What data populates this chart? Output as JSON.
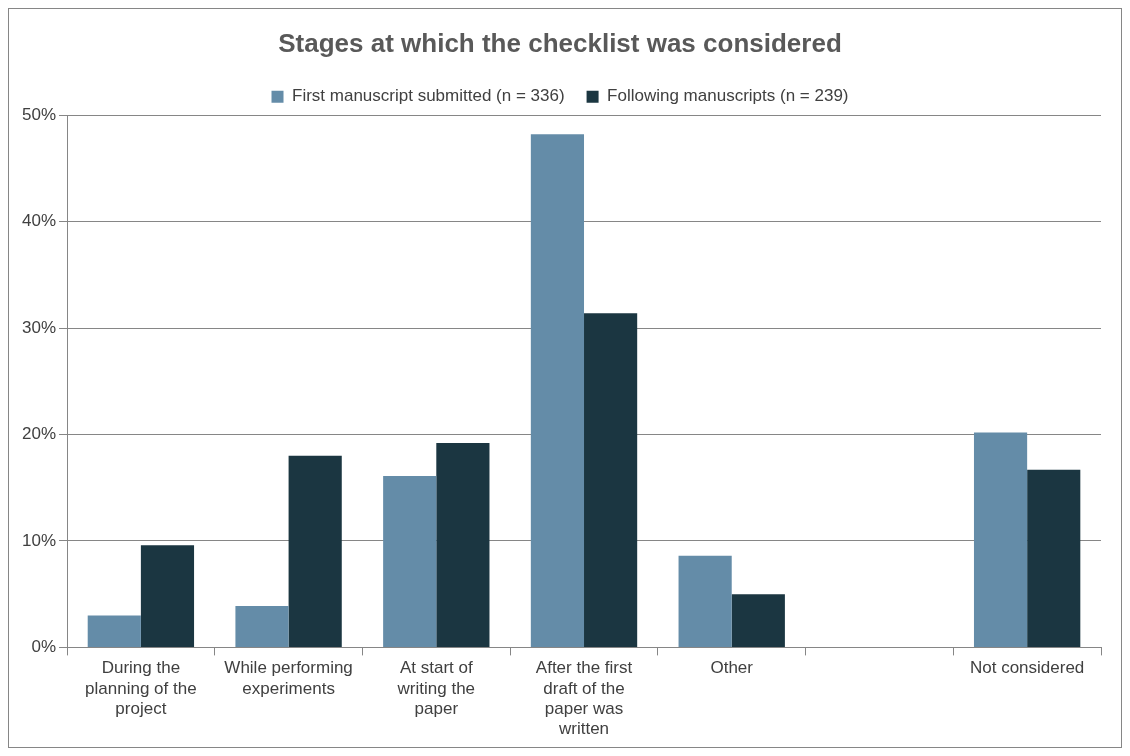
{
  "chart_data": {
    "type": "bar",
    "title": "Stages at which the checklist was considered",
    "categories": [
      "During the planning of the project",
      "While performing experiments",
      "At start of writing the paper",
      "After the first draft of the paper was written",
      "Other",
      null,
      "Not considered"
    ],
    "series": [
      {
        "name": "First manuscript submitted (n = 336)",
        "color": "#648ca8",
        "values": [
          3.0,
          3.9,
          16.1,
          48.2,
          8.6,
          null,
          20.2
        ]
      },
      {
        "name": "Following manuscripts (n = 239)",
        "color": "#1b3641",
        "values": [
          9.6,
          18.0,
          19.2,
          31.4,
          5.0,
          null,
          16.7
        ]
      }
    ],
    "ylim": [
      0,
      50
    ],
    "yticks": [
      {
        "value": 0,
        "label": "0%"
      },
      {
        "value": 10,
        "label": "10%"
      },
      {
        "value": 20,
        "label": "20%"
      },
      {
        "value": 30,
        "label": "30%"
      },
      {
        "value": 40,
        "label": "40%"
      },
      {
        "value": 50,
        "label": "50%"
      }
    ],
    "grid": "y",
    "legend": "top"
  }
}
